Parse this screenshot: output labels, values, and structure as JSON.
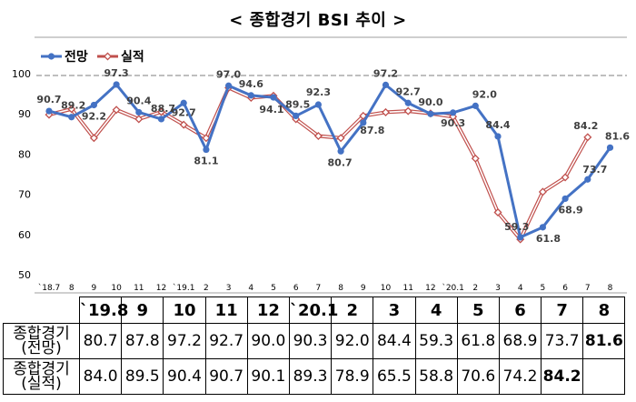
{
  "chart_data": {
    "type": "line",
    "title": "< 종합경기 BSI 추이 >",
    "x": [
      "`18.7",
      "8",
      "9",
      "10",
      "11",
      "12",
      "`19.1",
      "2",
      "3",
      "4",
      "5",
      "6",
      "7",
      "8",
      "9",
      "10",
      "11",
      "12",
      "`20.1",
      "2",
      "3",
      "4",
      "5",
      "6",
      "7",
      "8"
    ],
    "series": [
      {
        "name": "전망",
        "color": "#4472c4",
        "values": [
          90.7,
          89.2,
          92.2,
          97.3,
          90.4,
          88.7,
          92.7,
          81.1,
          97.0,
          94.6,
          94.1,
          89.5,
          92.3,
          80.7,
          87.8,
          97.2,
          92.7,
          90.0,
          90.3,
          92.0,
          84.4,
          59.3,
          61.8,
          68.9,
          73.7,
          81.6
        ]
      },
      {
        "name": "실적",
        "color": "#c0504d",
        "values": [
          89.8,
          91.2,
          84.0,
          91.0,
          88.7,
          90.5,
          87.3,
          84.0,
          96.5,
          94.0,
          94.5,
          88.7,
          84.5,
          84.0,
          89.5,
          90.4,
          90.7,
          90.1,
          89.3,
          78.9,
          65.5,
          58.8,
          70.6,
          74.2,
          84.2,
          null
        ]
      }
    ],
    "point_labels": {
      "전망": {
        "0": "90.7",
        "1": "89.2",
        "2": "92.2",
        "3": "97.3",
        "4": "90.4",
        "5": "88.7",
        "6": "92.7",
        "7": "81.1",
        "8": "97.0",
        "9": "94.6",
        "10": "94.1",
        "11": "89.5",
        "12": "92.3",
        "13": "80.7",
        "14": "87.8",
        "15": "97.2",
        "16": "92.7",
        "17": "90.0",
        "18": "90.3",
        "19": "92.0",
        "20": "84.4",
        "21": "59.3",
        "22": "61.8",
        "23": "68.9",
        "24": "73.7",
        "25": "81.6"
      },
      "실적": {
        "24": "84.2"
      }
    },
    "ylim": [
      50,
      100
    ],
    "yticks": [
      "50",
      "60",
      "70",
      "80",
      "90",
      "100"
    ],
    "grid": false,
    "legend_position": "top-left"
  },
  "table": {
    "headers": [
      "`19.8",
      "9",
      "10",
      "11",
      "12",
      "`20.1",
      "2",
      "3",
      "4",
      "5",
      "6",
      "7",
      "8"
    ],
    "rows": [
      {
        "label": "종합경기 (전망)",
        "values": [
          "80.7",
          "87.8",
          "97.2",
          "92.7",
          "90.0",
          "90.3",
          "92.0",
          "84.4",
          "59.3",
          "61.8",
          "68.9",
          "73.7",
          "81.6"
        ],
        "bold_index": 12
      },
      {
        "label": "종합경기 (실적)",
        "values": [
          "84.0",
          "89.5",
          "90.4",
          "90.7",
          "90.1",
          "89.3",
          "78.9",
          "65.5",
          "58.8",
          "70.6",
          "74.2",
          "84.2",
          ""
        ],
        "bold_index": 11
      }
    ]
  }
}
